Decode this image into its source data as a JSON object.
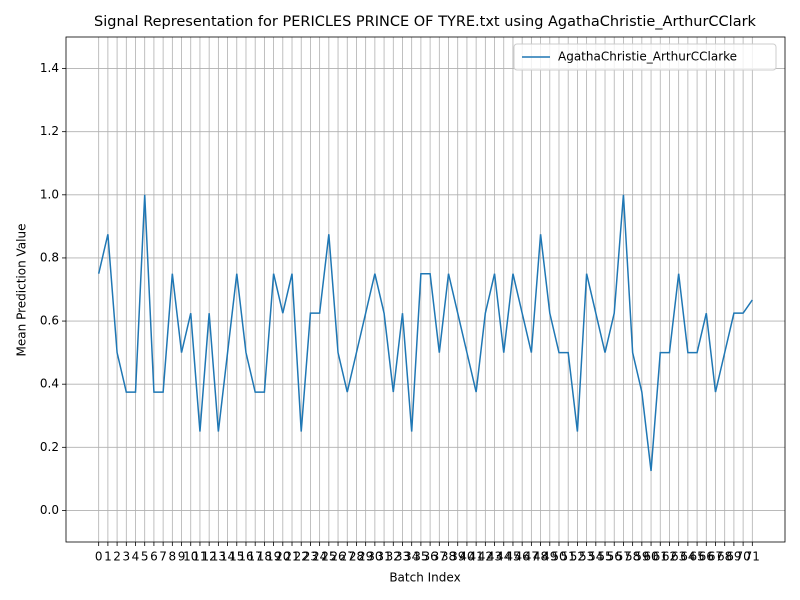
{
  "chart_data": {
    "type": "line",
    "title": "Signal Representation for PERICLES PRINCE OF TYRE.txt using AgathaChristie_ArthurCClark",
    "xlabel": "Batch Index",
    "ylabel": "Mean Prediction Value",
    "x": [
      0,
      1,
      2,
      3,
      4,
      5,
      6,
      7,
      8,
      9,
      10,
      11,
      12,
      13,
      14,
      15,
      16,
      17,
      18,
      19,
      20,
      21,
      22,
      23,
      24,
      25,
      26,
      27,
      28,
      29,
      30,
      31,
      32,
      33,
      34,
      35,
      36,
      37,
      38,
      39,
      40,
      41,
      42,
      43,
      44,
      45,
      46,
      47,
      48,
      49,
      50,
      51,
      52,
      53,
      54,
      55,
      56,
      57,
      58,
      59,
      60,
      61,
      62,
      63,
      64,
      65,
      66,
      67,
      68,
      69,
      70,
      71
    ],
    "series": [
      {
        "name": "AgathaChristie_ArthurCClarke",
        "color": "#1f77b4",
        "values": [
          0.75,
          0.875,
          0.5,
          0.375,
          0.375,
          1.0,
          0.375,
          0.375,
          0.75,
          0.5,
          0.625,
          0.25,
          0.625,
          0.25,
          0.5,
          0.75,
          0.5,
          0.375,
          0.375,
          0.75,
          0.625,
          0.75,
          0.25,
          0.625,
          0.625,
          0.875,
          0.5,
          0.375,
          0.5,
          0.625,
          0.75,
          0.625,
          0.375,
          0.625,
          0.25,
          0.75,
          0.75,
          0.5,
          0.75,
          0.625,
          0.5,
          0.375,
          0.625,
          0.75,
          0.5,
          0.75,
          0.625,
          0.5,
          0.875,
          0.625,
          0.5,
          0.5,
          0.25,
          0.75,
          0.625,
          0.5,
          0.625,
          1.0,
          0.5,
          0.375,
          0.125,
          0.5,
          0.5,
          0.75,
          0.5,
          0.5,
          0.625,
          0.375,
          0.5,
          0.625,
          0.625,
          0.667
        ]
      }
    ],
    "xlim": [
      -3.55,
      74.55
    ],
    "xticks": [
      0,
      1,
      2,
      3,
      4,
      5,
      6,
      7,
      8,
      9,
      10,
      11,
      12,
      13,
      14,
      15,
      16,
      17,
      18,
      19,
      20,
      21,
      22,
      23,
      24,
      25,
      26,
      27,
      28,
      29,
      30,
      31,
      32,
      33,
      34,
      35,
      36,
      37,
      38,
      39,
      40,
      41,
      42,
      43,
      44,
      45,
      46,
      47,
      48,
      49,
      50,
      51,
      52,
      53,
      54,
      55,
      56,
      57,
      58,
      59,
      60,
      61,
      62,
      63,
      64,
      65,
      66,
      67,
      68,
      69,
      70,
      71
    ],
    "ylim": [
      -0.1,
      1.5
    ],
    "yticks": [
      {
        "value": 0,
        "label": "0.0"
      },
      {
        "value": 0.2,
        "label": "0.2"
      },
      {
        "value": 0.4,
        "label": "0.4"
      },
      {
        "value": 0.6,
        "label": "0.6"
      },
      {
        "value": 0.8,
        "label": "0.8"
      },
      {
        "value": 1.0,
        "label": "1.0"
      },
      {
        "value": 1.2,
        "label": "1.2"
      },
      {
        "value": 1.4,
        "label": "1.4"
      }
    ],
    "grid": true,
    "legend": "upper right"
  }
}
